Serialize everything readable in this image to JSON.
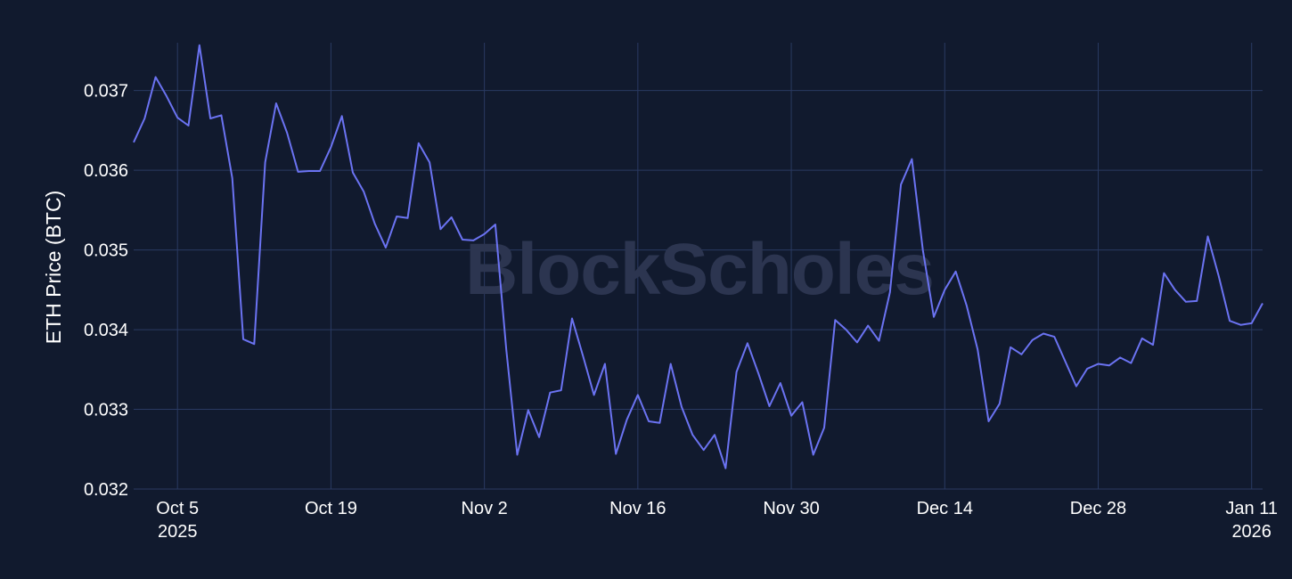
{
  "watermark": "BlockScholes",
  "colors": {
    "background": "#111a2e",
    "line": "#6b73f2",
    "grid": "#2a3a62",
    "text": "#ffffff"
  },
  "chart_data": {
    "type": "line",
    "title": "",
    "xlabel": "",
    "ylabel": "ETH Price (BTC)",
    "grid": true,
    "ylim": [
      0.032,
      0.0376
    ],
    "xlim": [
      "2025-10-01",
      "2026-01-12"
    ],
    "y_ticks": [
      {
        "value": 0.032,
        "label": "0.032"
      },
      {
        "value": 0.033,
        "label": "0.033"
      },
      {
        "value": 0.034,
        "label": "0.034"
      },
      {
        "value": 0.035,
        "label": "0.035"
      },
      {
        "value": 0.036,
        "label": "0.036"
      },
      {
        "value": 0.037,
        "label": "0.037"
      }
    ],
    "x_ticks": [
      {
        "date": "2025-10-05",
        "label": "Oct 5",
        "label2": "2025"
      },
      {
        "date": "2025-10-19",
        "label": "Oct 19",
        "label2": ""
      },
      {
        "date": "2025-11-02",
        "label": "Nov 2",
        "label2": ""
      },
      {
        "date": "2025-11-16",
        "label": "Nov 16",
        "label2": ""
      },
      {
        "date": "2025-11-30",
        "label": "Nov 30",
        "label2": ""
      },
      {
        "date": "2025-12-14",
        "label": "Dec 14",
        "label2": ""
      },
      {
        "date": "2025-12-28",
        "label": "Dec 28",
        "label2": ""
      },
      {
        "date": "2026-01-11",
        "label": "Jan 11",
        "label2": "2026"
      }
    ],
    "series": [
      {
        "x": [
          "2025-10-01",
          "2025-10-02",
          "2025-10-03",
          "2025-10-04",
          "2025-10-05",
          "2025-10-06",
          "2025-10-07",
          "2025-10-08",
          "2025-10-09",
          "2025-10-10",
          "2025-10-11",
          "2025-10-12",
          "2025-10-13",
          "2025-10-14",
          "2025-10-15",
          "2025-10-16",
          "2025-10-17",
          "2025-10-18",
          "2025-10-19",
          "2025-10-20",
          "2025-10-21",
          "2025-10-22",
          "2025-10-23",
          "2025-10-24",
          "2025-10-25",
          "2025-10-26",
          "2025-10-27",
          "2025-10-28",
          "2025-10-29",
          "2025-10-30",
          "2025-10-31",
          "2025-11-01",
          "2025-11-02",
          "2025-11-03",
          "2025-11-04",
          "2025-11-05",
          "2025-11-06",
          "2025-11-07",
          "2025-11-08",
          "2025-11-09",
          "2025-11-10",
          "2025-11-11",
          "2025-11-12",
          "2025-11-13",
          "2025-11-14",
          "2025-11-15",
          "2025-11-16",
          "2025-11-17",
          "2025-11-18",
          "2025-11-19",
          "2025-11-20",
          "2025-11-21",
          "2025-11-22",
          "2025-11-23",
          "2025-11-24",
          "2025-11-25",
          "2025-11-26",
          "2025-11-27",
          "2025-11-28",
          "2025-11-29",
          "2025-11-30",
          "2025-12-01",
          "2025-12-02",
          "2025-12-03",
          "2025-12-04",
          "2025-12-05",
          "2025-12-06",
          "2025-12-07",
          "2025-12-08",
          "2025-12-09",
          "2025-12-10",
          "2025-12-11",
          "2025-12-12",
          "2025-12-13",
          "2025-12-14",
          "2025-12-15",
          "2025-12-16",
          "2025-12-17",
          "2025-12-18",
          "2025-12-19",
          "2025-12-20",
          "2025-12-21",
          "2025-12-22",
          "2025-12-23",
          "2025-12-24",
          "2025-12-25",
          "2025-12-26",
          "2025-12-27",
          "2025-12-28",
          "2025-12-29",
          "2025-12-30",
          "2025-12-31",
          "2026-01-01",
          "2026-01-02",
          "2026-01-03",
          "2026-01-04",
          "2026-01-05",
          "2026-01-06",
          "2026-01-07",
          "2026-01-08",
          "2026-01-09",
          "2026-01-10",
          "2026-01-11",
          "2026-01-12"
        ],
        "y": [
          0.03635,
          0.03665,
          0.03717,
          0.03693,
          0.03666,
          0.03656,
          0.03757,
          0.03665,
          0.03669,
          0.0359,
          0.03388,
          0.03382,
          0.0361,
          0.03684,
          0.03647,
          0.03598,
          0.03599,
          0.03599,
          0.03629,
          0.03668,
          0.03597,
          0.03573,
          0.03533,
          0.03503,
          0.03542,
          0.0354,
          0.03634,
          0.0361,
          0.03526,
          0.03541,
          0.03513,
          0.03512,
          0.0352,
          0.03532,
          0.03375,
          0.03243,
          0.03299,
          0.03265,
          0.03321,
          0.03324,
          0.03414,
          0.03367,
          0.03318,
          0.03357,
          0.03244,
          0.03287,
          0.03318,
          0.03285,
          0.03283,
          0.03357,
          0.03303,
          0.03268,
          0.03249,
          0.03268,
          0.03226,
          0.03347,
          0.03383,
          0.03345,
          0.03304,
          0.03333,
          0.03292,
          0.03309,
          0.03243,
          0.03277,
          0.03412,
          0.034,
          0.03384,
          0.03405,
          0.03386,
          0.03447,
          0.03582,
          0.03614,
          0.035,
          0.03416,
          0.0345,
          0.03473,
          0.0343,
          0.03375,
          0.03285,
          0.03307,
          0.03378,
          0.03369,
          0.03387,
          0.03395,
          0.03391,
          0.0336,
          0.03329,
          0.03351,
          0.03357,
          0.03355,
          0.03365,
          0.03358,
          0.03389,
          0.03381,
          0.03471,
          0.0345,
          0.03435,
          0.03436,
          0.03517,
          0.03467,
          0.03411,
          0.03406,
          0.03408,
          0.03433
        ]
      }
    ]
  }
}
